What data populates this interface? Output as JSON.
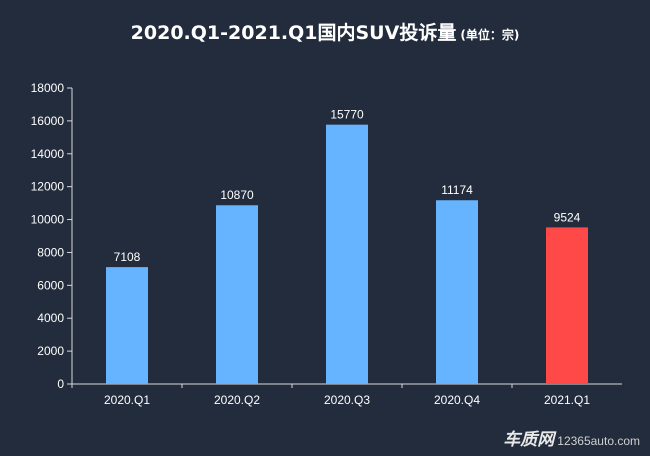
{
  "chart_data": {
    "type": "bar",
    "title": "2020.Q1-2021.Q1国内SUV投诉量",
    "subtitle": "(单位：宗)",
    "xlabel": "",
    "ylabel": "",
    "categories": [
      "2020.Q1",
      "2020.Q2",
      "2020.Q3",
      "2020.Q4",
      "2021.Q1"
    ],
    "values": [
      7108,
      10870,
      15770,
      11174,
      9524
    ],
    "data_labels": [
      "7108",
      "10870",
      "15770",
      "11174",
      "9524"
    ],
    "ylim": [
      0,
      18000
    ],
    "yticks": [
      0,
      2000,
      4000,
      6000,
      8000,
      10000,
      12000,
      14000,
      16000,
      18000
    ],
    "ytick_labels": [
      "0",
      "2000",
      "4000",
      "6000",
      "8000",
      "10000",
      "12000",
      "14000",
      "16000",
      "18000"
    ],
    "colors": [
      "#66b3ff",
      "#66b3ff",
      "#66b3ff",
      "#66b3ff",
      "#ff4848"
    ],
    "grid": false,
    "legend": "none"
  },
  "watermark": {
    "brand": "车质网",
    "url": "12365auto.com"
  }
}
